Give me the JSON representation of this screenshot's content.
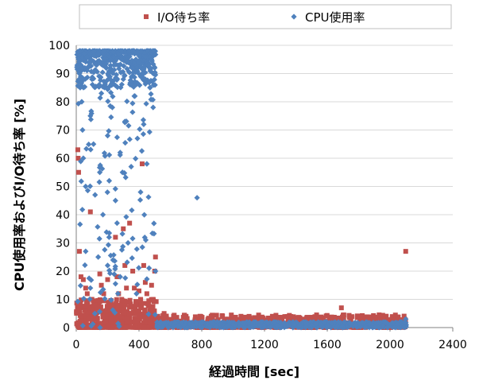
{
  "chart_data": {
    "type": "scatter",
    "xlabel": "経過時間 [sec]",
    "ylabel": "CPU使用率およびI/O待ち率 [%]",
    "xlim": [
      0,
      2400
    ],
    "ylim": [
      0,
      100
    ],
    "xticks": [
      0,
      400,
      800,
      1200,
      1600,
      2000,
      2400
    ],
    "yticks": [
      0,
      10,
      20,
      30,
      40,
      50,
      60,
      70,
      80,
      90,
      100
    ],
    "grid": "horizontal",
    "legend_position": "top",
    "series": [
      {
        "name": "I/O待ち率",
        "color": "#C0504D",
        "marker": "square",
        "segments": [
          {
            "x_range": [
              0,
              510
            ],
            "distribution": "mostly 0-10, sparse up to ~63",
            "points": [
              [
                10,
                63
              ],
              [
                12,
                60
              ],
              [
                15,
                55
              ],
              [
                20,
                27
              ],
              [
                25,
                8
              ],
              [
                30,
                18
              ],
              [
                45,
                17
              ],
              [
                60,
                14
              ],
              [
                70,
                12
              ],
              [
                90,
                41
              ],
              [
                100,
                10
              ],
              [
                120,
                8
              ],
              [
                140,
                7
              ],
              [
                150,
                19
              ],
              [
                160,
                15
              ],
              [
                175,
                12
              ],
              [
                200,
                17
              ],
              [
                210,
                9
              ],
              [
                230,
                8
              ],
              [
                250,
                32
              ],
              [
                260,
                18
              ],
              [
                270,
                12
              ],
              [
                290,
                10
              ],
              [
                300,
                35
              ],
              [
                310,
                22
              ],
              [
                320,
                14
              ],
              [
                330,
                9
              ],
              [
                340,
                37
              ],
              [
                360,
                20
              ],
              [
                370,
                14
              ],
              [
                380,
                8
              ],
              [
                390,
                6
              ],
              [
                400,
                13
              ],
              [
                410,
                10
              ],
              [
                420,
                58
              ],
              [
                430,
                22
              ],
              [
                440,
                16
              ],
              [
                450,
                12
              ],
              [
                460,
                8
              ],
              [
                470,
                6
              ],
              [
                480,
                15
              ],
              [
                490,
                10
              ],
              [
                500,
                20
              ],
              [
                505,
                25
              ],
              [
                30,
                4
              ],
              [
                55,
                6
              ],
              [
                80,
                3
              ],
              [
                110,
                5
              ],
              [
                130,
                3
              ],
              [
                170,
                4
              ],
              [
                190,
                6
              ],
              [
                220,
                3
              ],
              [
                240,
                5
              ],
              [
                280,
                4
              ],
              [
                320,
                3
              ],
              [
                350,
                5
              ],
              [
                400,
                4
              ],
              [
                440,
                3
              ],
              [
                470,
                4
              ],
              [
                495,
                5
              ]
            ]
          },
          {
            "x_range": [
              510,
              2110
            ],
            "distribution": "0-5",
            "points": [
              [
                520,
                4
              ],
              [
                560,
                5
              ],
              [
                620,
                4
              ],
              [
                700,
                4
              ],
              [
                780,
                3
              ],
              [
                860,
                4
              ],
              [
                950,
                3
              ],
              [
                1050,
                4
              ],
              [
                1150,
                3
              ],
              [
                1250,
                4
              ],
              [
                1350,
                3
              ],
              [
                1450,
                3
              ],
              [
                1550,
                3
              ],
              [
                1690,
                7
              ],
              [
                1750,
                3
              ],
              [
                1850,
                3
              ],
              [
                1950,
                2
              ],
              [
                2050,
                2
              ],
              [
                2100,
                27
              ]
            ]
          }
        ]
      },
      {
        "name": "CPU使用率",
        "color": "#4F81BD",
        "marker": "diamond",
        "segments": [
          {
            "x_range": [
              0,
              510
            ],
            "distribution": "mostly 85-98, spread down to 0",
            "points": [
              [
                15,
                95
              ],
              [
                20,
                90
              ],
              [
                25,
                85
              ],
              [
                30,
                93
              ],
              [
                35,
                80
              ],
              [
                40,
                70
              ],
              [
                45,
                60
              ],
              [
                50,
                97
              ],
              [
                55,
                92
              ],
              [
                60,
                50
              ],
              [
                70,
                96
              ],
              [
                80,
                94
              ],
              [
                90,
                75
              ],
              [
                100,
                88
              ],
              [
                110,
                65
              ],
              [
                120,
                47
              ],
              [
                130,
                93
              ],
              [
                140,
                97
              ],
              [
                150,
                55
              ],
              [
                160,
                83
              ],
              [
                170,
                40
              ],
              [
                180,
                95
              ],
              [
                190,
                92
              ],
              [
                200,
                68
              ],
              [
                210,
                52
              ],
              [
                220,
                95
              ],
              [
                230,
                78
              ],
              [
                240,
                93
              ],
              [
                250,
                45
              ],
              [
                260,
                37
              ],
              [
                270,
                97
              ],
              [
                280,
                62
              ],
              [
                290,
                95
              ],
              [
                300,
                88
              ],
              [
                310,
                73
              ],
              [
                320,
                94
              ],
              [
                330,
                30
              ],
              [
                340,
                96
              ],
              [
                350,
                57
              ],
              [
                360,
                92
              ],
              [
                370,
                82
              ],
              [
                380,
                95
              ],
              [
                390,
                67
              ],
              [
                400,
                94
              ],
              [
                410,
                48
              ],
              [
                420,
                90
              ],
              [
                430,
                72
              ],
              [
                440,
                96
              ],
              [
                450,
                58
              ],
              [
                460,
                93
              ],
              [
                470,
                85
              ],
              [
                480,
                95
              ],
              [
                490,
                78
              ],
              [
                500,
                92
              ],
              [
                505,
                20
              ],
              [
                60,
                27
              ],
              [
                90,
                14
              ],
              [
                140,
                25
              ],
              [
                200,
                22
              ],
              [
                280,
                18
              ]
            ]
          },
          {
            "x_range": [
              510,
              2110
            ],
            "distribution": "0-2, one outlier",
            "points": [
              [
                770,
                46
              ],
              [
                2100,
                3
              ]
            ]
          }
        ]
      }
    ]
  }
}
